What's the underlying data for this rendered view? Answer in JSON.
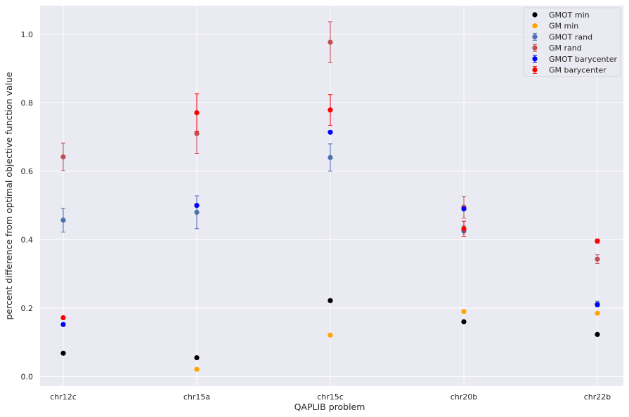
{
  "chart_data": {
    "type": "scatter",
    "title": "",
    "xlabel": "QAPLIB problem",
    "ylabel": "percent difference from optimal objective function value",
    "categories": [
      "chr12c",
      "chr15a",
      "chr15c",
      "chr20b",
      "chr22b"
    ],
    "ylim": [
      -0.028,
      1.084
    ],
    "yticks": [
      0.0,
      0.2,
      0.4,
      0.6,
      0.8,
      1.0
    ],
    "ytick_labels": [
      "0.0",
      "0.2",
      "0.4",
      "0.6",
      "0.8",
      "1.0"
    ],
    "grid": true,
    "legend_position": "top-right",
    "series": [
      {
        "name": "GMOT min",
        "color": "#000000",
        "values": [
          0.068,
          0.055,
          0.222,
          0.16,
          0.123
        ],
        "errors": null
      },
      {
        "name": "GM min",
        "color": "#ffa500",
        "values": [
          null,
          0.021,
          0.121,
          0.19,
          0.185
        ],
        "errors": null
      },
      {
        "name": "GMOT rand",
        "color": "#4c72b0",
        "values": [
          0.457,
          0.48,
          0.64,
          0.425,
          0.212
        ],
        "errors": [
          0.035,
          0.048,
          0.04,
          0.015,
          0.008
        ]
      },
      {
        "name": "GM rand",
        "color": "#c44e52",
        "values": [
          0.642,
          0.71,
          0.977,
          0.495,
          0.343
        ],
        "errors": [
          0.04,
          0.058,
          0.06,
          0.032,
          0.013
        ]
      },
      {
        "name": "GMOT barycenter",
        "color": "#0000ff",
        "values": [
          0.152,
          0.5,
          0.714,
          0.49,
          0.21
        ],
        "errors": [
          0.003,
          0.003,
          0.003,
          0.003,
          0.003
        ]
      },
      {
        "name": "GM barycenter",
        "color": "#ff0000",
        "values": [
          0.172,
          0.771,
          0.779,
          0.432,
          0.396
        ],
        "errors": [
          0.003,
          0.055,
          0.045,
          0.022,
          0.006
        ]
      }
    ]
  }
}
